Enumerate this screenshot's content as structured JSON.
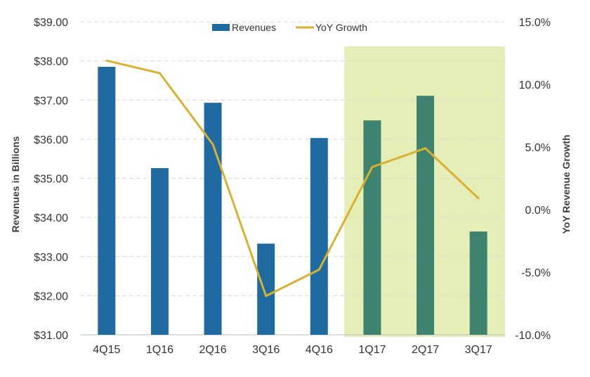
{
  "chart_data": {
    "type": "bar",
    "categories": [
      "4Q15",
      "1Q16",
      "2Q16",
      "3Q16",
      "4Q16",
      "1Q17",
      "2Q17",
      "3Q17"
    ],
    "series": [
      {
        "name": "Revenues",
        "kind": "bar",
        "axis": "left",
        "values": [
          37.85,
          35.26,
          36.93,
          33.33,
          36.03,
          36.48,
          37.11,
          33.64
        ],
        "color": "#1f6aa0",
        "highlight_color": "#3e8270"
      },
      {
        "name": "YoY Growth",
        "kind": "line",
        "axis": "right",
        "values": [
          11.9,
          10.9,
          5.2,
          -6.9,
          -4.8,
          3.4,
          4.9,
          0.9
        ],
        "color": "#d8b22e"
      }
    ],
    "ylabel": "Revenues in Billions",
    "ylabel_right": "YoY Revenue Growth",
    "ylim": [
      31,
      39
    ],
    "y_ticks": [
      "$39.00",
      "$38.00",
      "$37.00",
      "$36.00",
      "$35.00",
      "$34.00",
      "$33.00",
      "$32.00",
      "$31.00"
    ],
    "ylim_right": [
      -10,
      15
    ],
    "y_ticks_right": [
      "15.0%",
      "10.0%",
      "5.0%",
      "0.0%",
      "-5.0%",
      "-10.0%"
    ],
    "highlight_categories": [
      "1Q17",
      "2Q17",
      "3Q17"
    ],
    "highlight_color": "#e6eeb8",
    "grid": true,
    "legend": "top"
  }
}
